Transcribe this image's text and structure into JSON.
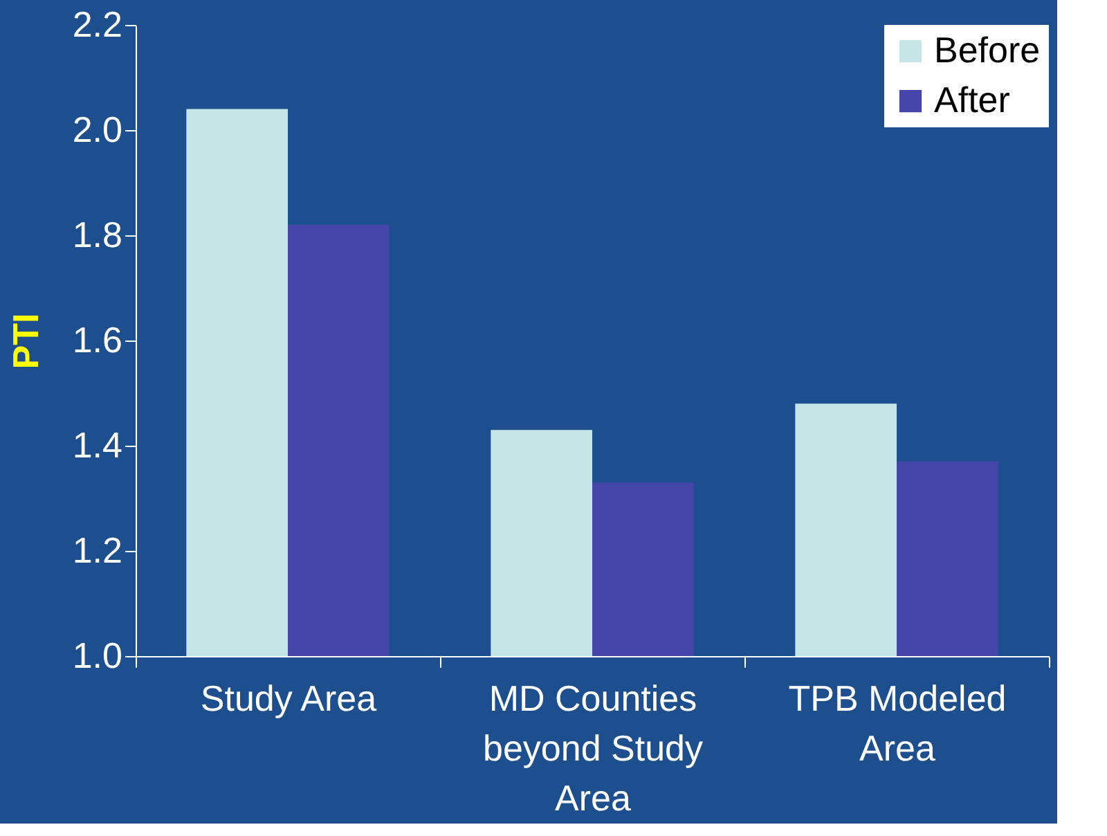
{
  "chart_data": {
    "type": "bar",
    "ylabel": "PTI",
    "categories": [
      "Study Area",
      "MD Counties beyond Study Area",
      "TPB Modeled Area"
    ],
    "series": [
      {
        "name": "Before",
        "color": "#c5e5e6",
        "values": [
          2.04,
          1.43,
          1.48
        ]
      },
      {
        "name": "After",
        "color": "#4646a8",
        "values": [
          1.82,
          1.33,
          1.37
        ]
      }
    ],
    "ylim": [
      1.0,
      2.2
    ],
    "yticks": [
      {
        "value": 1,
        "label": "1.0"
      },
      1.2,
      1.4,
      1.6,
      1.8,
      {
        "value": 2,
        "label": "2.0"
      },
      2.2
    ],
    "grid": false,
    "legend": "top right"
  }
}
